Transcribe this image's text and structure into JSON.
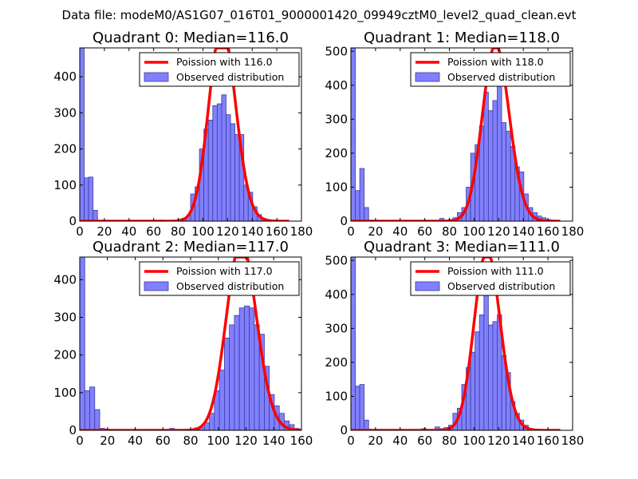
{
  "suptitle": "Data file: modeM0/AS1G07_016T01_9000001420_09949cztM0_level2_quad_clean.evt",
  "colors": {
    "bar_fill": "#8080ff",
    "bar_edge": "#3c3c9a",
    "fit_line": "#ff0000",
    "axis": "#000000"
  },
  "chart_data": [
    {
      "type": "bar",
      "title": "Quadrant 0: Median=116.0",
      "xlim": [
        0,
        180
      ],
      "ylim": [
        0,
        480
      ],
      "xticks": [
        0,
        20,
        40,
        60,
        80,
        100,
        120,
        140,
        160,
        180
      ],
      "yticks": [
        0,
        100,
        200,
        300,
        400
      ],
      "legend": {
        "position": "top-right",
        "line_label": "Poission with 116.0",
        "bar_label": "Observed distribution"
      },
      "bin_width": 3.6,
      "bins": [
        {
          "x": 0,
          "y": 480
        },
        {
          "x": 3.6,
          "y": 120
        },
        {
          "x": 7.2,
          "y": 122
        },
        {
          "x": 10.8,
          "y": 30
        },
        {
          "x": 14.4,
          "y": 2
        },
        {
          "x": 18,
          "y": 1
        },
        {
          "x": 64.8,
          "y": 3
        },
        {
          "x": 75.6,
          "y": 2
        },
        {
          "x": 79.2,
          "y": 5
        },
        {
          "x": 82.8,
          "y": 8
        },
        {
          "x": 86.4,
          "y": 15
        },
        {
          "x": 90,
          "y": 75
        },
        {
          "x": 93.6,
          "y": 95
        },
        {
          "x": 97.2,
          "y": 200
        },
        {
          "x": 100.8,
          "y": 255
        },
        {
          "x": 104.4,
          "y": 280
        },
        {
          "x": 108,
          "y": 320
        },
        {
          "x": 111.6,
          "y": 325
        },
        {
          "x": 115.2,
          "y": 350
        },
        {
          "x": 118.8,
          "y": 295
        },
        {
          "x": 122.4,
          "y": 270
        },
        {
          "x": 126,
          "y": 240
        },
        {
          "x": 129.6,
          "y": 240
        },
        {
          "x": 133.2,
          "y": 100
        },
        {
          "x": 136.8,
          "y": 80
        },
        {
          "x": 140.4,
          "y": 40
        },
        {
          "x": 144,
          "y": 18
        },
        {
          "x": 147.6,
          "y": 8
        },
        {
          "x": 151.2,
          "y": 4
        },
        {
          "x": 154.8,
          "y": 2
        }
      ],
      "poisson_mean": 116.0,
      "poisson_scale": 540,
      "poisson_range": [
        0,
        170
      ]
    },
    {
      "type": "bar",
      "title": "Quadrant 1: Median=118.0",
      "xlim": [
        0,
        180
      ],
      "ylim": [
        0,
        510
      ],
      "xticks": [
        0,
        20,
        40,
        60,
        80,
        100,
        120,
        140,
        160,
        180
      ],
      "yticks": [
        0,
        100,
        200,
        300,
        400,
        500
      ],
      "legend": {
        "position": "top-right",
        "line_label": "Poission with 118.0",
        "bar_label": "Observed distribution"
      },
      "bin_width": 3.6,
      "bins": [
        {
          "x": 0,
          "y": 510
        },
        {
          "x": 3.6,
          "y": 90
        },
        {
          "x": 7.2,
          "y": 155
        },
        {
          "x": 10.8,
          "y": 40
        },
        {
          "x": 14.4,
          "y": 3
        },
        {
          "x": 18,
          "y": 2
        },
        {
          "x": 72,
          "y": 8
        },
        {
          "x": 79.2,
          "y": 5
        },
        {
          "x": 82.8,
          "y": 10
        },
        {
          "x": 86.4,
          "y": 25
        },
        {
          "x": 90,
          "y": 40
        },
        {
          "x": 93.6,
          "y": 100
        },
        {
          "x": 97.2,
          "y": 200
        },
        {
          "x": 100.8,
          "y": 225
        },
        {
          "x": 104.4,
          "y": 280
        },
        {
          "x": 108,
          "y": 380
        },
        {
          "x": 111.6,
          "y": 325
        },
        {
          "x": 115.2,
          "y": 355
        },
        {
          "x": 118.8,
          "y": 430
        },
        {
          "x": 122.4,
          "y": 290
        },
        {
          "x": 126,
          "y": 265
        },
        {
          "x": 129.6,
          "y": 220
        },
        {
          "x": 133.2,
          "y": 160
        },
        {
          "x": 136.8,
          "y": 145
        },
        {
          "x": 140.4,
          "y": 80
        },
        {
          "x": 144,
          "y": 40
        },
        {
          "x": 147.6,
          "y": 25
        },
        {
          "x": 151.2,
          "y": 15
        },
        {
          "x": 154.8,
          "y": 10
        },
        {
          "x": 158.4,
          "y": 5
        },
        {
          "x": 162,
          "y": 3
        }
      ],
      "poisson_mean": 118.0,
      "poisson_scale": 520,
      "poisson_range": [
        0,
        170
      ]
    },
    {
      "type": "bar",
      "title": "Quadrant 2: Median=117.0",
      "xlim": [
        0,
        160
      ],
      "ylim": [
        0,
        460
      ],
      "xticks": [
        0,
        20,
        40,
        60,
        80,
        100,
        120,
        140,
        160
      ],
      "yticks": [
        0,
        100,
        200,
        300,
        400
      ],
      "legend": {
        "position": "top-right",
        "line_label": "Poission with 117.0",
        "bar_label": "Observed distribution"
      },
      "bin_width": 3.6,
      "bins": [
        {
          "x": 0,
          "y": 460
        },
        {
          "x": 3.6,
          "y": 105
        },
        {
          "x": 7.2,
          "y": 115
        },
        {
          "x": 10.8,
          "y": 55
        },
        {
          "x": 14.4,
          "y": 5
        },
        {
          "x": 18,
          "y": 3
        },
        {
          "x": 64.8,
          "y": 5
        },
        {
          "x": 82.8,
          "y": 6
        },
        {
          "x": 86.4,
          "y": 8
        },
        {
          "x": 90,
          "y": 20
        },
        {
          "x": 93.6,
          "y": 45
        },
        {
          "x": 97.2,
          "y": 105
        },
        {
          "x": 100.8,
          "y": 160
        },
        {
          "x": 104.4,
          "y": 245
        },
        {
          "x": 108,
          "y": 280
        },
        {
          "x": 111.6,
          "y": 305
        },
        {
          "x": 115.2,
          "y": 325
        },
        {
          "x": 118.8,
          "y": 330
        },
        {
          "x": 122.4,
          "y": 325
        },
        {
          "x": 126,
          "y": 280
        },
        {
          "x": 129.6,
          "y": 255
        },
        {
          "x": 133.2,
          "y": 170
        },
        {
          "x": 136.8,
          "y": 95
        },
        {
          "x": 140.4,
          "y": 65
        },
        {
          "x": 144,
          "y": 45
        },
        {
          "x": 147.6,
          "y": 25
        },
        {
          "x": 151.2,
          "y": 15
        },
        {
          "x": 154.8,
          "y": 5
        }
      ],
      "poisson_mean": 117.0,
      "poisson_scale": 500,
      "poisson_range": [
        0,
        160
      ]
    },
    {
      "type": "bar",
      "title": "Quadrant 3: Median=111.0",
      "xlim": [
        0,
        180
      ],
      "ylim": [
        0,
        510
      ],
      "xticks": [
        0,
        20,
        40,
        60,
        80,
        100,
        120,
        140,
        160,
        180
      ],
      "yticks": [
        0,
        100,
        200,
        300,
        400,
        500
      ],
      "legend": {
        "position": "top-right",
        "line_label": "Poission with 111.0",
        "bar_label": "Observed distribution"
      },
      "bin_width": 3.6,
      "bins": [
        {
          "x": 0,
          "y": 510
        },
        {
          "x": 3.6,
          "y": 130
        },
        {
          "x": 7.2,
          "y": 135
        },
        {
          "x": 10.8,
          "y": 30
        },
        {
          "x": 14.4,
          "y": 3
        },
        {
          "x": 18,
          "y": 2
        },
        {
          "x": 57.6,
          "y": 5
        },
        {
          "x": 68.4,
          "y": 10
        },
        {
          "x": 72,
          "y": 5
        },
        {
          "x": 75.6,
          "y": 8
        },
        {
          "x": 79.2,
          "y": 15
        },
        {
          "x": 82.8,
          "y": 50
        },
        {
          "x": 86.4,
          "y": 65
        },
        {
          "x": 90,
          "y": 135
        },
        {
          "x": 93.6,
          "y": 185
        },
        {
          "x": 97.2,
          "y": 230
        },
        {
          "x": 100.8,
          "y": 290
        },
        {
          "x": 104.4,
          "y": 340
        },
        {
          "x": 108,
          "y": 400
        },
        {
          "x": 111.6,
          "y": 310
        },
        {
          "x": 115.2,
          "y": 320
        },
        {
          "x": 118.8,
          "y": 340
        },
        {
          "x": 122.4,
          "y": 220
        },
        {
          "x": 126,
          "y": 170
        },
        {
          "x": 129.6,
          "y": 85
        },
        {
          "x": 133.2,
          "y": 50
        },
        {
          "x": 136.8,
          "y": 30
        },
        {
          "x": 140.4,
          "y": 15
        },
        {
          "x": 144,
          "y": 5
        }
      ],
      "poisson_mean": 111.0,
      "poisson_scale": 530,
      "poisson_range": [
        0,
        170
      ]
    }
  ]
}
